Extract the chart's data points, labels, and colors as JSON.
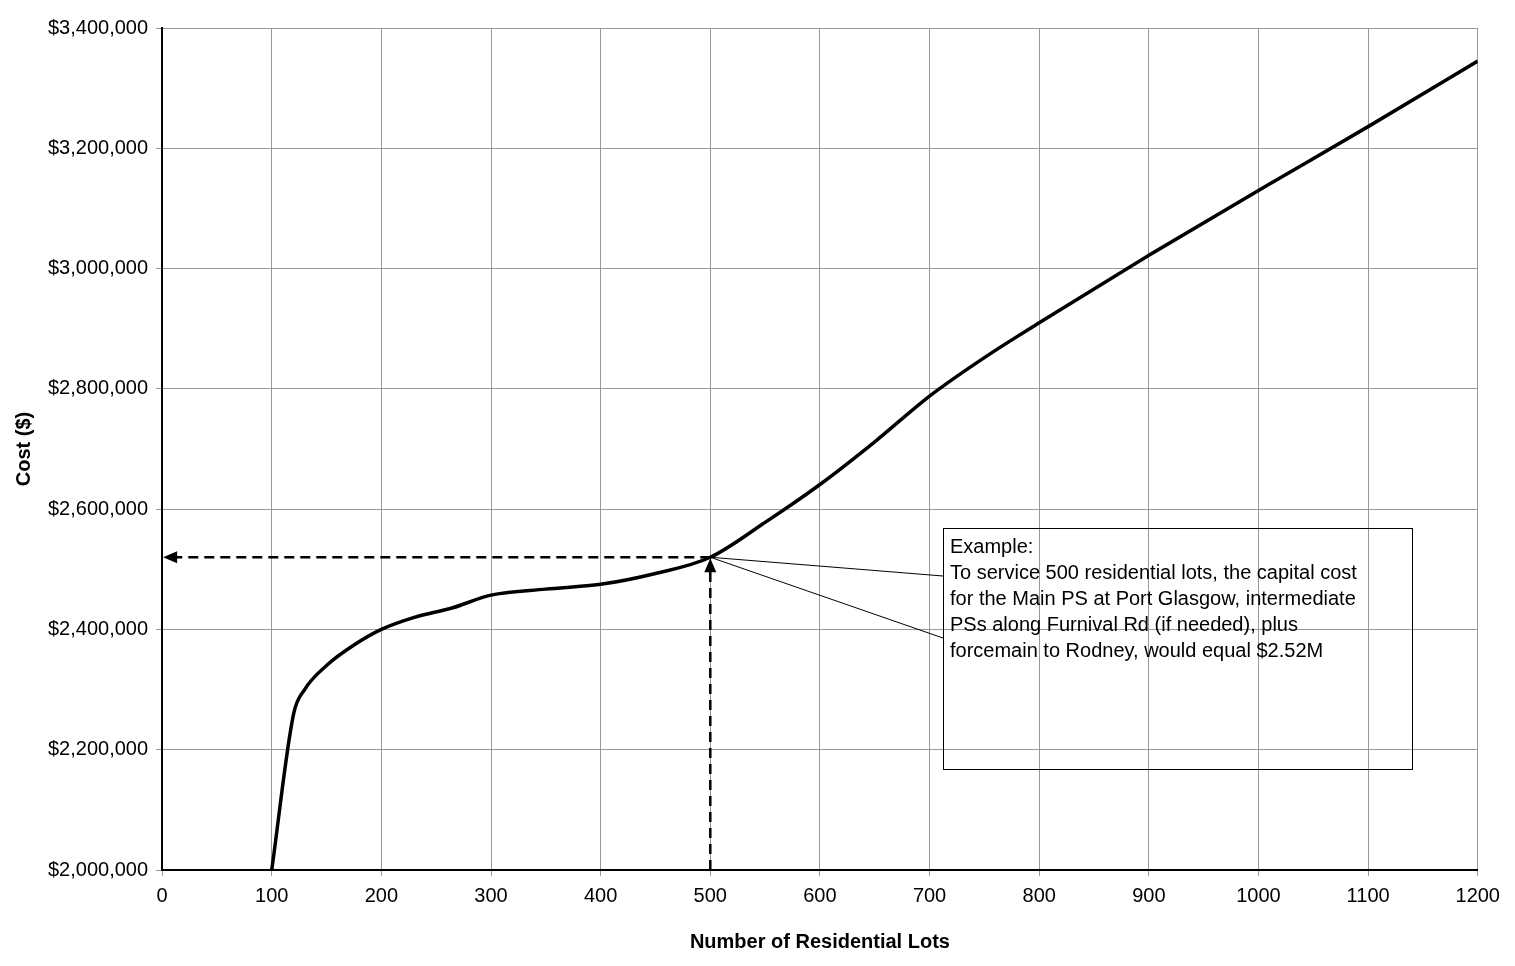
{
  "chart_data": {
    "type": "line",
    "xlabel": "Number of Residential Lots",
    "ylabel": "Cost ($)",
    "xlim": [
      0,
      1200
    ],
    "xticks": [
      0,
      100,
      200,
      300,
      400,
      500,
      600,
      700,
      800,
      900,
      1000,
      1100,
      1200
    ],
    "ylim": [
      2000000,
      3400000
    ],
    "yticks": [
      {
        "value": 2000000,
        "label": "$2,000,000"
      },
      {
        "value": 2200000,
        "label": "$2,200,000"
      },
      {
        "value": 2400000,
        "label": "$2,400,000"
      },
      {
        "value": 2600000,
        "label": "$2,600,000"
      },
      {
        "value": 2800000,
        "label": "$2,800,000"
      },
      {
        "value": 3000000,
        "label": "$3,000,000"
      },
      {
        "value": 3200000,
        "label": "$3,200,000"
      },
      {
        "value": 3400000,
        "label": "$3,400,000"
      }
    ],
    "grid": true,
    "legend": false,
    "marker": "none",
    "line_style": "solid",
    "series": [
      {
        "color": "#000000",
        "x": [
          100,
          120,
          130,
          150,
          175,
          200,
          230,
          265,
          300,
          350,
          400,
          450,
          500,
          550,
          600,
          650,
          700,
          750,
          800,
          900,
          1000,
          1100,
          1200
        ],
        "values": [
          2000000,
          2260000,
          2300000,
          2340000,
          2374000,
          2400000,
          2420000,
          2436000,
          2457000,
          2467000,
          2475000,
          2493000,
          2520000,
          2578000,
          2641000,
          2712000,
          2788000,
          2852000,
          2910000,
          3022000,
          3130000,
          3236000,
          3345000
        ]
      }
    ],
    "annotations": [
      {
        "text": "Example:\nTo service 500 residential lots, the capital cost for the Main PS at Port Glasgow, intermediate PSs along Furnival Rd (if needed), plus forcemain to Rodney, would equal $2.52M",
        "x": 500,
        "y": 2520000
      }
    ]
  }
}
